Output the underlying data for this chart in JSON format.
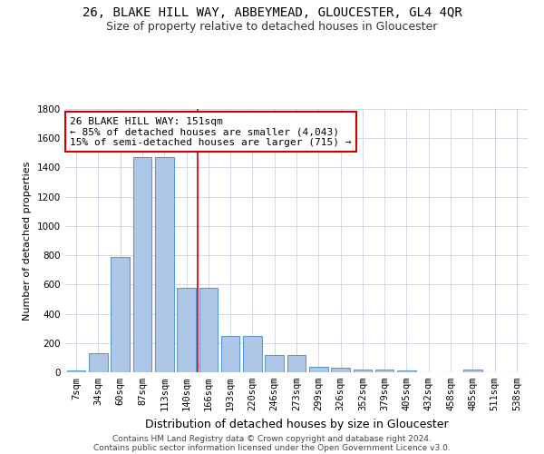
{
  "title": "26, BLAKE HILL WAY, ABBEYMEAD, GLOUCESTER, GL4 4QR",
  "subtitle": "Size of property relative to detached houses in Gloucester",
  "xlabel": "Distribution of detached houses by size in Gloucester",
  "ylabel": "Number of detached properties",
  "footer_line1": "Contains HM Land Registry data © Crown copyright and database right 2024.",
  "footer_line2": "Contains public sector information licensed under the Open Government Licence v3.0.",
  "bin_labels": [
    "7sqm",
    "34sqm",
    "60sqm",
    "87sqm",
    "113sqm",
    "140sqm",
    "166sqm",
    "193sqm",
    "220sqm",
    "246sqm",
    "273sqm",
    "299sqm",
    "326sqm",
    "352sqm",
    "379sqm",
    "405sqm",
    "432sqm",
    "458sqm",
    "485sqm",
    "511sqm",
    "538sqm"
  ],
  "bar_values": [
    10,
    130,
    790,
    1470,
    1470,
    580,
    580,
    250,
    250,
    115,
    115,
    35,
    30,
    20,
    20,
    10,
    0,
    0,
    20,
    0,
    0
  ],
  "bar_color": "#aec6e8",
  "bar_edgecolor": "#5a9ad5",
  "property_line_x": 5.5,
  "property_line_color": "#cc0000",
  "annotation_text": "26 BLAKE HILL WAY: 151sqm\n← 85% of detached houses are smaller (4,043)\n15% of semi-detached houses are larger (715) →",
  "annotation_box_color": "#ffffff",
  "annotation_box_edgecolor": "#cc0000",
  "ylim": [
    0,
    1800
  ],
  "yticks": [
    0,
    200,
    400,
    600,
    800,
    1000,
    1200,
    1400,
    1600,
    1800
  ],
  "background_color": "#ffffff",
  "grid_color": "#d0d8e8",
  "title_fontsize": 10,
  "subtitle_fontsize": 9,
  "ylabel_fontsize": 8,
  "xlabel_fontsize": 9,
  "tick_fontsize": 7.5,
  "annotation_fontsize": 8,
  "footer_fontsize": 6.5
}
